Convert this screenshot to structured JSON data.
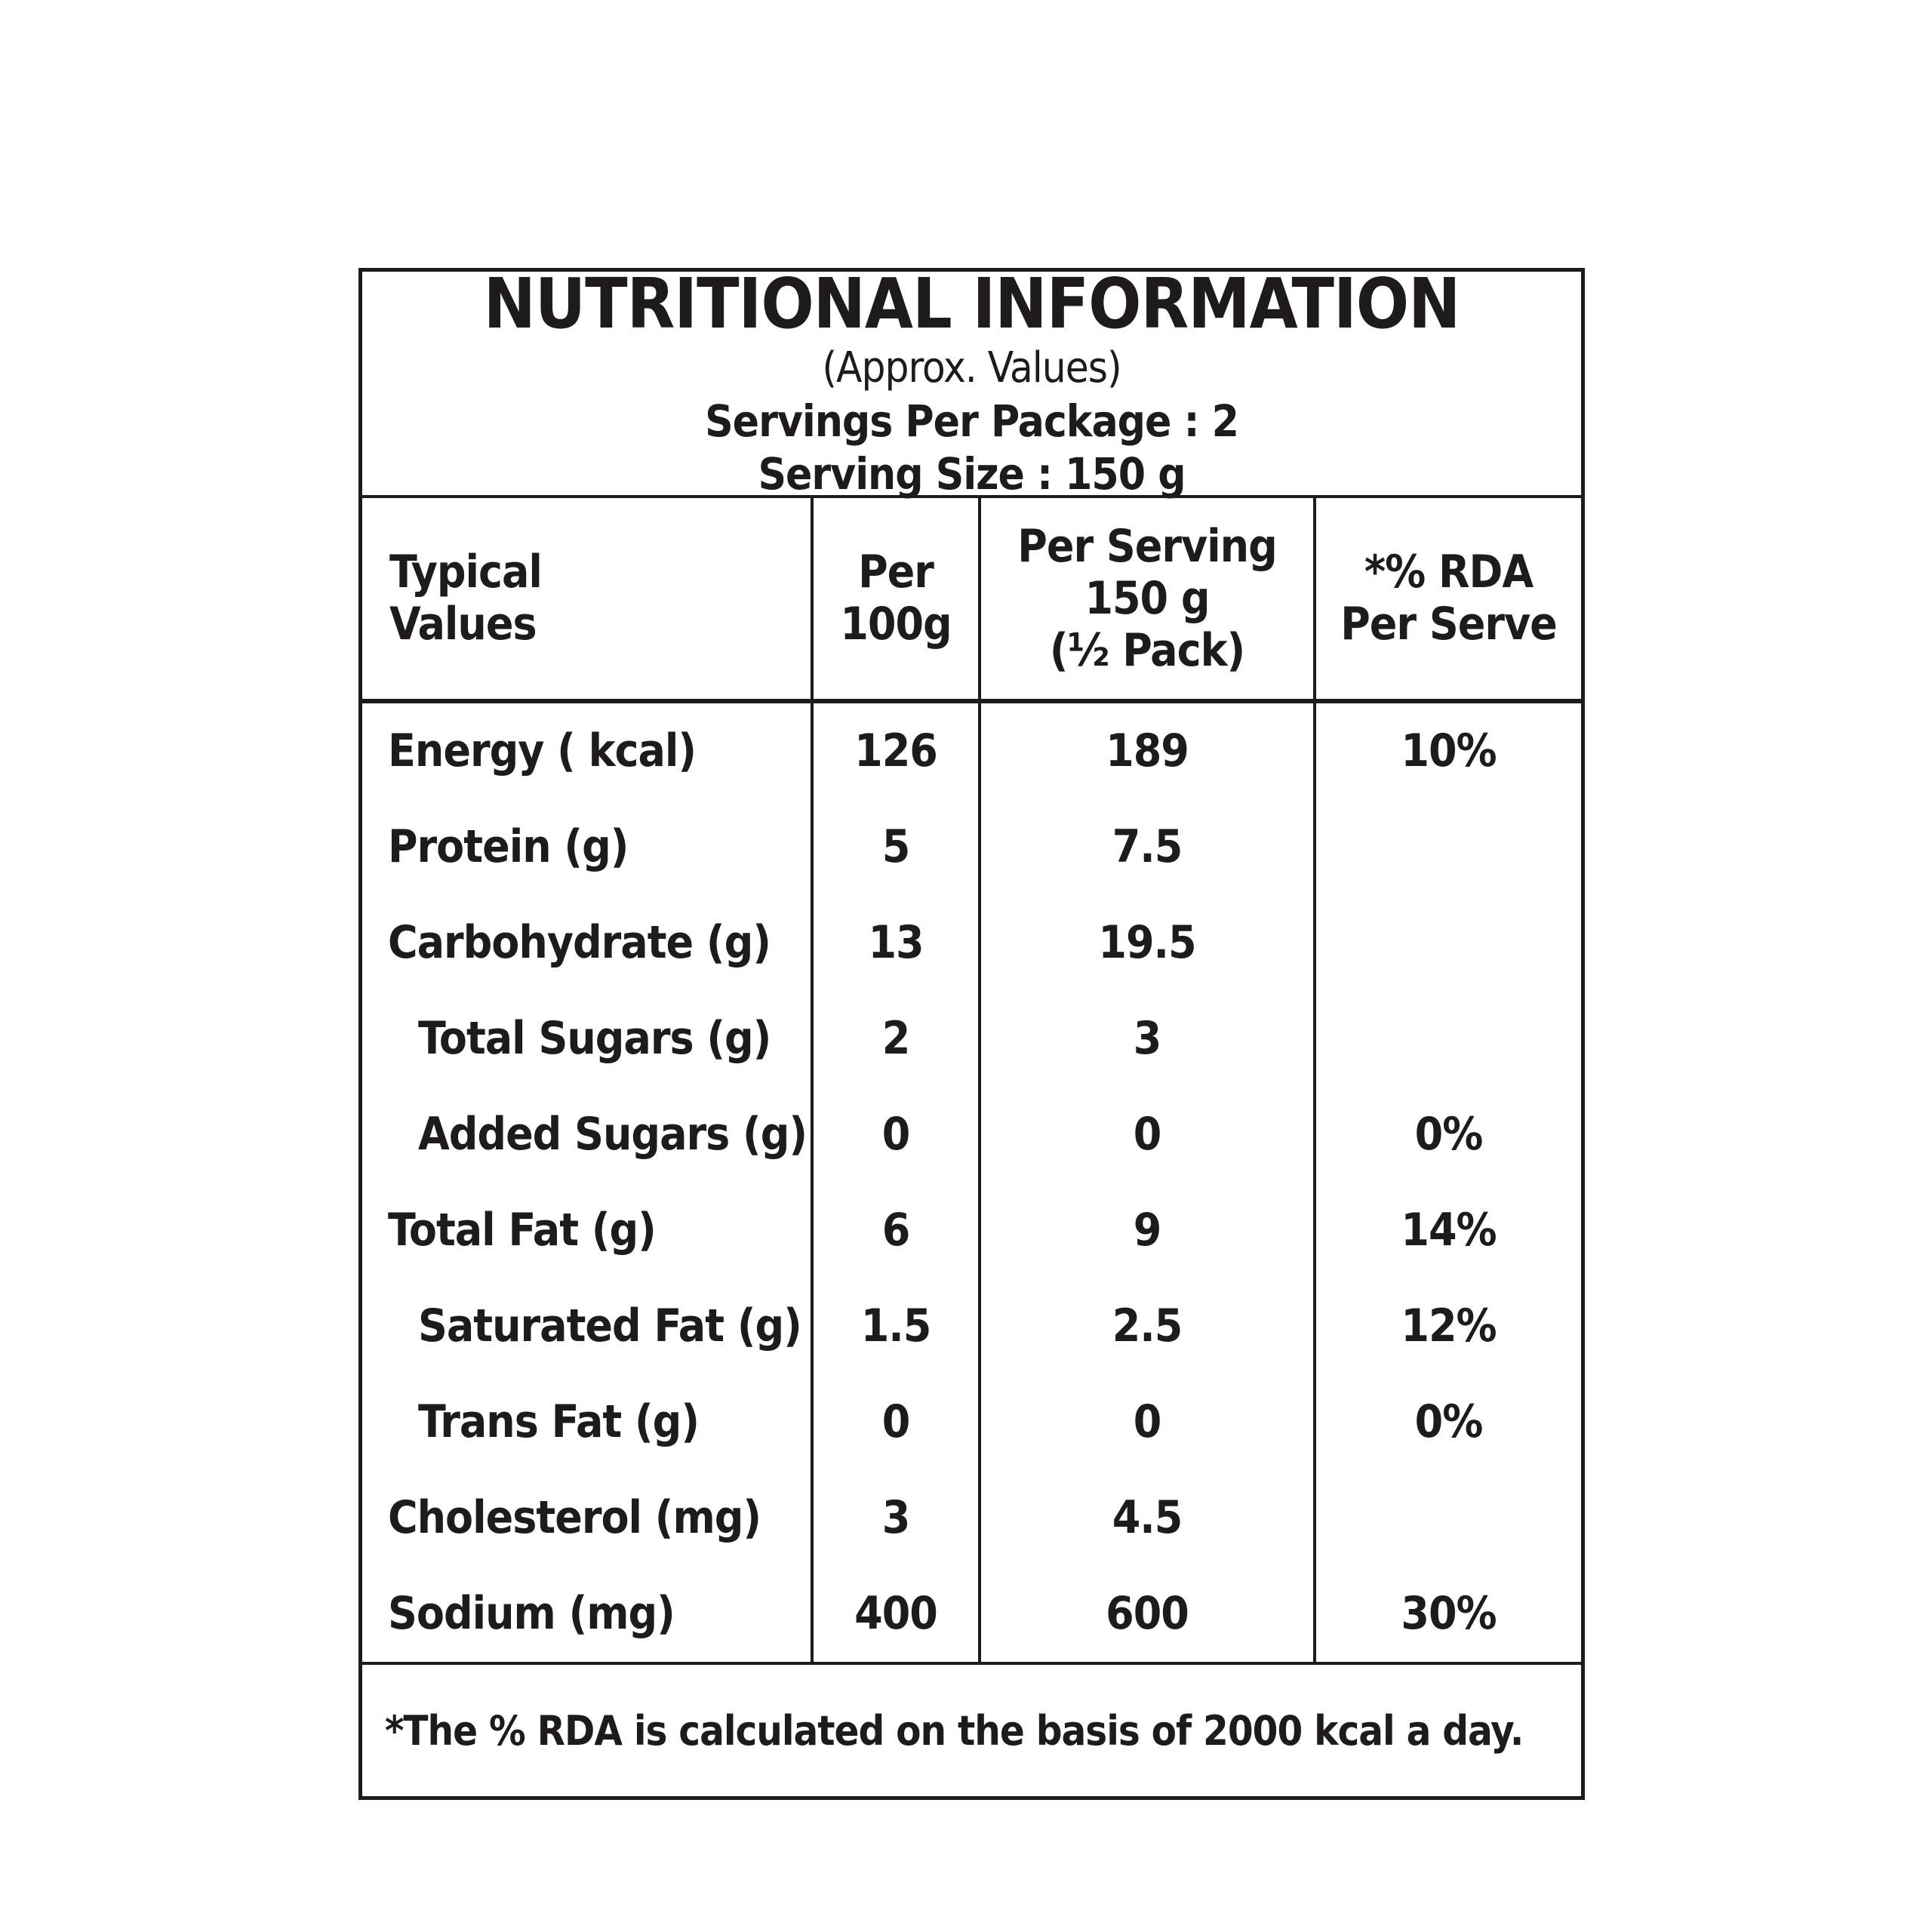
{
  "colors": {
    "background": "#ffffff",
    "text": "#1e1b1c",
    "border": "#1e1b1c"
  },
  "nutrition_label": {
    "title": "NUTRITIONAL INFORMATION",
    "subtitle": "(Approx. Values)",
    "servings_per_package": "Servings Per Package : 2",
    "serving_size": "Serving Size : 150 g",
    "header": {
      "col1": [
        "Typical",
        "Values"
      ],
      "col2": [
        "Per",
        "100g"
      ],
      "col3": [
        "Per Serving",
        "150 g",
        "(½ Pack)"
      ],
      "col4": [
        "*% RDA",
        "Per Serve"
      ]
    },
    "rows": [
      {
        "label": "Energy ( kcal)",
        "per_100g": "126",
        "per_serving": "189",
        "rda": "10%"
      },
      {
        "label": "Protein (g)",
        "per_100g": "5",
        "per_serving": "7.5",
        "rda": ""
      },
      {
        "label": "Carbohydrate (g)",
        "per_100g": "13",
        "per_serving": "19.5",
        "rda": ""
      },
      {
        "label": "Total Sugars (g)",
        "per_100g": "2",
        "per_serving": "3",
        "rda": ""
      },
      {
        "label": "Added Sugars (g)",
        "per_100g": "0",
        "per_serving": "0",
        "rda": "0%"
      },
      {
        "label": "Total Fat (g)",
        "per_100g": "6",
        "per_serving": "9",
        "rda": "14%"
      },
      {
        "label": "Saturated Fat (g)",
        "per_100g": "1.5",
        "per_serving": "2.5",
        "rda": "12%"
      },
      {
        "label": "Trans Fat (g)",
        "per_100g": "0",
        "per_serving": "0",
        "rda": "0%"
      },
      {
        "label": "Cholesterol (mg)",
        "per_100g": "3",
        "per_serving": "4.5",
        "rda": ""
      },
      {
        "label": "Sodium (mg)",
        "per_100g": "400",
        "per_serving": "600",
        "rda": "30%"
      }
    ],
    "footnote": "*The % RDA is calculated on the basis of 2000 kcal a day."
  }
}
